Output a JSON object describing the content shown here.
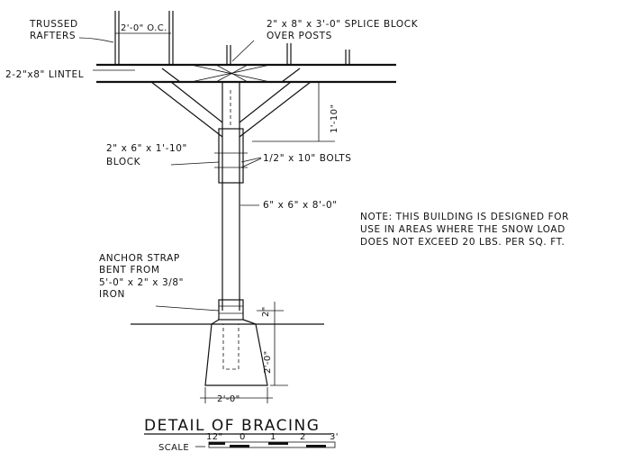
{
  "labels": {
    "trussed_rafters_1": "TRUSSED",
    "trussed_rafters_2": "RAFTERS",
    "spacing": "2'-0\" O.C.",
    "splice_1": "2\" x 8\" x 3'-0\"  SPLICE BLOCK",
    "splice_2": "OVER POSTS",
    "lintel": "2-2\"x8\" LINTEL",
    "brace_height": "1'-10\"",
    "block_1": "2\" x 6\" x 1'-10\"",
    "block_2": "BLOCK",
    "bolts": "1/2\" x 10\" BOLTS",
    "post": "6\" x 6\" x 8'-0\"",
    "note_1": "NOTE: THIS BUILDING IS DESIGNED FOR",
    "note_2": "USE IN AREAS WHERE THE SNOW LOAD",
    "note_3": "DOES NOT EXCEED 20 LBS. PER SQ. FT.",
    "anchor_1": "ANCHOR STRAP",
    "anchor_2": "BENT FROM",
    "anchor_3": "5'-0\" x 2\" x 3/8\"",
    "anchor_4": "IRON",
    "dim_2in": "2\"",
    "dim_depth": "2'-0\"",
    "dim_width": "2'-0\"",
    "title": "DETAIL OF BRACING",
    "scale_label": "SCALE",
    "scale_ticks": [
      "12\"",
      "0",
      "1",
      "2",
      "3'"
    ]
  }
}
